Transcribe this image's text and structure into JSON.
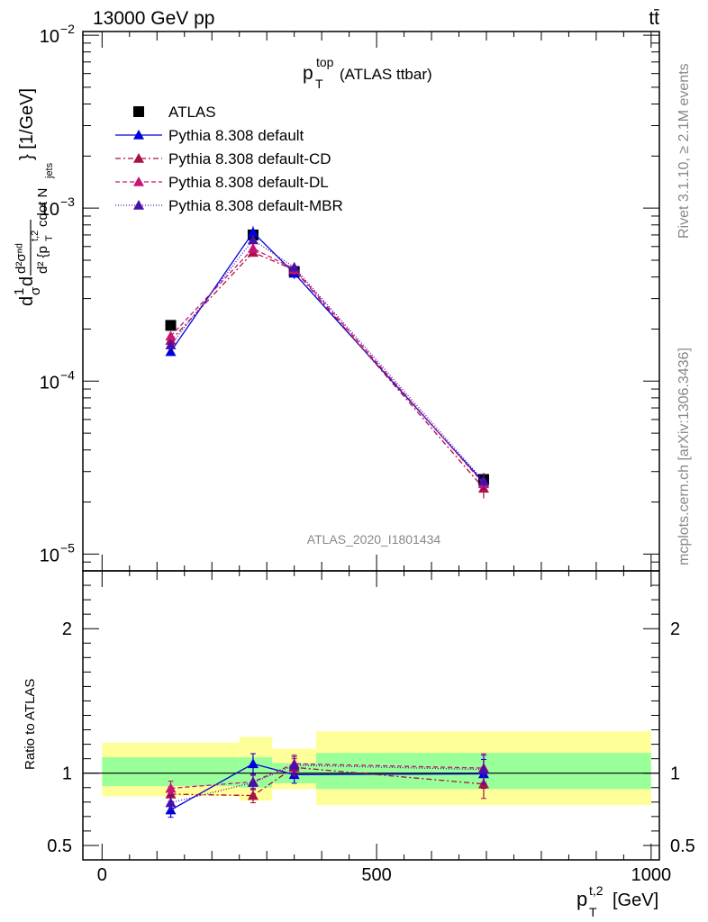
{
  "header": {
    "left": "13000 GeV pp",
    "right": "tt̄"
  },
  "side": {
    "rivet": "Rivet 3.1.10, ≥ 2.1M events",
    "mcplots": "mcplots.cern.ch [arXiv:1306.3436]"
  },
  "watermark": "ATLAS_2020_I1801434",
  "chart_data": [
    {
      "type": "line",
      "title": "p_T^top (ATLAS ttbar)",
      "title_parts": {
        "main": "p",
        "sup": "top",
        "sub": "T",
        "rest": "(ATLAS ttbar)"
      },
      "ylabel": "d²σⁿᵈ / d²{p_T^t,2 cdot N_jets} [1/GeV]",
      "ylabel_parts": {
        "a": "d",
        "b": "1",
        "c": "d",
        "d": "d²σⁿᵈ",
        "e": "d² {p",
        "f": "t,2",
        "g": "T",
        "h": " cdot N",
        "i": "jets",
        "j": "} [1/GeV]",
        "sigma": "σ"
      },
      "xlabel": "p_T^t,2 [GeV]",
      "xlabel_parts": {
        "main": "p",
        "sup": "t,2",
        "sub": "T",
        "rest": "[GeV]"
      },
      "xlim": [
        -35,
        1015
      ],
      "ylim": [
        8e-06,
        0.0105
      ],
      "yscale": "log",
      "yticks": [
        {
          "value": 1e-05,
          "base": "10",
          "exp": "−5"
        },
        {
          "value": 0.0001,
          "base": "10",
          "exp": "−4"
        },
        {
          "value": 0.001,
          "base": "10",
          "exp": "−3"
        },
        {
          "value": 0.01,
          "base": "10",
          "exp": "−2"
        }
      ],
      "legend_position": "top-left",
      "x": [
        125,
        275,
        350,
        695
      ],
      "series": [
        {
          "name": "ATLAS",
          "color": "#000000",
          "marker": "square",
          "values": [
            0.00021,
            0.0007,
            0.00043,
            2.7e-05
          ],
          "err": [
            1e-05,
            4e-05,
            2e-05,
            2e-06
          ]
        },
        {
          "name": "Pythia 8.308 default",
          "color": "#0000dd",
          "marker": "triangle",
          "dash": "",
          "values": [
            0.000148,
            0.000725,
            0.00042,
            2.6e-05
          ],
          "err": [
            8e-06,
            6e-05,
            3e-05,
            3e-06
          ]
        },
        {
          "name": "Pythia 8.308 default-CD",
          "color": "#aa1144",
          "marker": "triangle",
          "dash": "6,3,2,3",
          "values": [
            0.000172,
            0.000555,
            0.00044,
            2.4e-05
          ],
          "err": [
            1e-05,
            3e-05,
            3e-05,
            3e-06
          ]
        },
        {
          "name": "Pythia 8.308 default-DL",
          "color": "#cc1177",
          "marker": "triangle",
          "dash": "5,3",
          "values": [
            0.000182,
            0.000585,
            0.000445,
            2.55e-05
          ],
          "err": [
            1e-05,
            3e-05,
            3e-05,
            3e-06
          ]
        },
        {
          "name": "Pythia 8.308 default-MBR",
          "color": "#4411aa",
          "marker": "triangle",
          "dash": "1,2",
          "values": [
            0.000162,
            0.000655,
            0.000455,
            2.65e-05
          ],
          "err": [
            1e-05,
            4e-05,
            3e-05,
            3e-06
          ]
        }
      ]
    },
    {
      "type": "line",
      "ylabel": "Ratio to ATLAS",
      "xlim": [
        -35,
        1015
      ],
      "ylim": [
        0.4,
        2.4
      ],
      "yticks": [
        0.5,
        1,
        2
      ],
      "xticks": [
        0,
        500,
        1000
      ],
      "bands": [
        {
          "x0": 0,
          "x1": 250,
          "yellow": [
            0.84,
            1.21
          ],
          "green": [
            0.91,
            1.11
          ]
        },
        {
          "x0": 250,
          "x1": 310,
          "yellow": [
            0.81,
            1.25
          ],
          "green": [
            0.9,
            1.11
          ]
        },
        {
          "x0": 310,
          "x1": 390,
          "yellow": [
            0.89,
            1.17
          ],
          "green": [
            0.93,
            1.07
          ]
        },
        {
          "x0": 390,
          "x1": 1000,
          "yellow": [
            0.78,
            1.29
          ],
          "green": [
            0.89,
            1.14
          ]
        }
      ],
      "series": [
        {
          "name": "Pythia 8.308 default",
          "values": [
            0.745,
            1.065,
            0.99,
            0.995
          ],
          "err": [
            0.05,
            0.07,
            0.06,
            0.1
          ]
        },
        {
          "name": "Pythia 8.308 default-CD",
          "values": [
            0.855,
            0.845,
            1.04,
            0.925
          ],
          "err": [
            0.05,
            0.05,
            0.06,
            0.1
          ]
        },
        {
          "name": "Pythia 8.308 default-DL",
          "values": [
            0.895,
            0.94,
            1.065,
            1.035
          ],
          "err": [
            0.05,
            0.05,
            0.06,
            0.1
          ]
        },
        {
          "name": "Pythia 8.308 default-MBR",
          "values": [
            0.795,
            0.935,
            1.055,
            1.025
          ],
          "err": [
            0.05,
            0.05,
            0.06,
            0.1
          ]
        }
      ]
    }
  ]
}
